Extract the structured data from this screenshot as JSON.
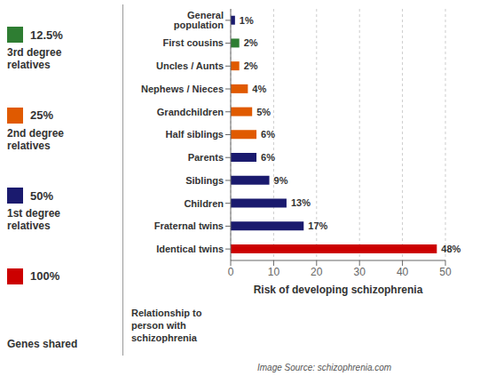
{
  "chart_data": {
    "type": "bar",
    "orientation": "horizontal",
    "categories": [
      "Identical twins",
      "Fraternal twins",
      "Children",
      "Siblings",
      "Parents",
      "Half siblings",
      "Grandchildren",
      "Nephews / Nieces",
      "Uncles / Aunts",
      "First cousins",
      "General population"
    ],
    "values": [
      48,
      17,
      13,
      9,
      6,
      6,
      5,
      4,
      2,
      2,
      1
    ],
    "value_labels": [
      "48%",
      "17%",
      "13%",
      "9%",
      "6%",
      "6%",
      "5%",
      "4%",
      "2%",
      "2%",
      "1%"
    ],
    "data_labels": true,
    "colors": [
      "#cc0000",
      "#1a1a6e",
      "#1a1a6e",
      "#1a1a6e",
      "#1a1a6e",
      "#e05a00",
      "#e05a00",
      "#e05a00",
      "#e05a00",
      "#2e7d32",
      "#1a1a6e"
    ],
    "xlim": [
      0,
      50
    ],
    "xticks": [
      0,
      10,
      20,
      30,
      40,
      50
    ],
    "xlabel": "Risk of developing schizophrenia",
    "ylabel": "Relationship to\nperson with\nschizophrenia",
    "grid": true,
    "legend_title": "Genes shared",
    "legend_items": [
      {
        "label": "12.5%",
        "text": "3rd degree\nrelatives",
        "color": "#2e7d32"
      },
      {
        "label": "25%",
        "text": "2nd degree\nrelatives",
        "color": "#e05a00"
      },
      {
        "label": "50%",
        "text": "1st degree\nrelatives",
        "color": "#1a1a6e"
      },
      {
        "label": "100%",
        "color": "#cc0000"
      }
    ],
    "source": "Image Source: schizophrenia.com"
  }
}
